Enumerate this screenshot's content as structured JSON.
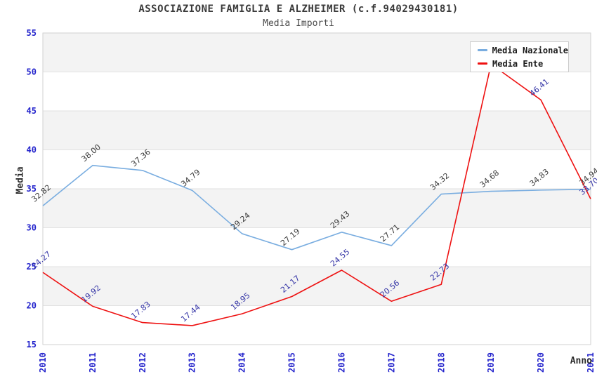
{
  "title": "ASSOCIAZIONE FAMIGLIA E ALZHEIMER (c.f.94029430181)",
  "subtitle": "Media Importi",
  "legend": {
    "items": [
      {
        "label": "Media Nazionale",
        "color": "#79ade0"
      },
      {
        "label": "Media Ente",
        "color": "#ee1111"
      }
    ]
  },
  "axes": {
    "y_title": "Media",
    "x_title": "Anno",
    "tick_color": "#2323cc",
    "y_ticks": [
      15,
      20,
      25,
      30,
      35,
      40,
      45,
      50,
      55
    ]
  },
  "chart_data": {
    "type": "line",
    "title": "Media Importi",
    "xlabel": "Anno",
    "ylabel": "Media",
    "x": [
      "2010",
      "2011",
      "2012",
      "2013",
      "2014",
      "2015",
      "2016",
      "2017",
      "2018",
      "2019",
      "2020",
      "2021"
    ],
    "series": [
      {
        "name": "Media Nazionale",
        "color": "#79ade0",
        "label_color": "#3a3a3a",
        "values": [
          32.82,
          38.0,
          37.36,
          34.79,
          29.24,
          27.19,
          29.43,
          27.71,
          34.32,
          34.68,
          34.83,
          34.94
        ],
        "labels": [
          "32.82",
          "38.00",
          "37.36",
          "34.79",
          "29.24",
          "27.19",
          "29.43",
          "27.71",
          "34.32",
          "34.68",
          "34.83",
          "34.94"
        ]
      },
      {
        "name": "Media Ente",
        "color": "#ee1111",
        "label_color": "#3434a6",
        "values": [
          24.27,
          19.92,
          17.83,
          17.44,
          18.95,
          21.17,
          24.55,
          20.56,
          22.73,
          51.0,
          46.41,
          33.7
        ],
        "labels": [
          "24.27",
          "19.92",
          "17.83",
          "17.44",
          "18.95",
          "21.17",
          "24.55",
          "20.56",
          "22.73",
          "",
          "46.41",
          "33.70"
        ]
      }
    ],
    "ylim": [
      15,
      55
    ],
    "y_step": 5,
    "grid": true,
    "band_fill": "#f3f3f3",
    "grid_color": "#e2e2e2",
    "border_color": "#d2d2d2",
    "legend_position": "top-right"
  }
}
